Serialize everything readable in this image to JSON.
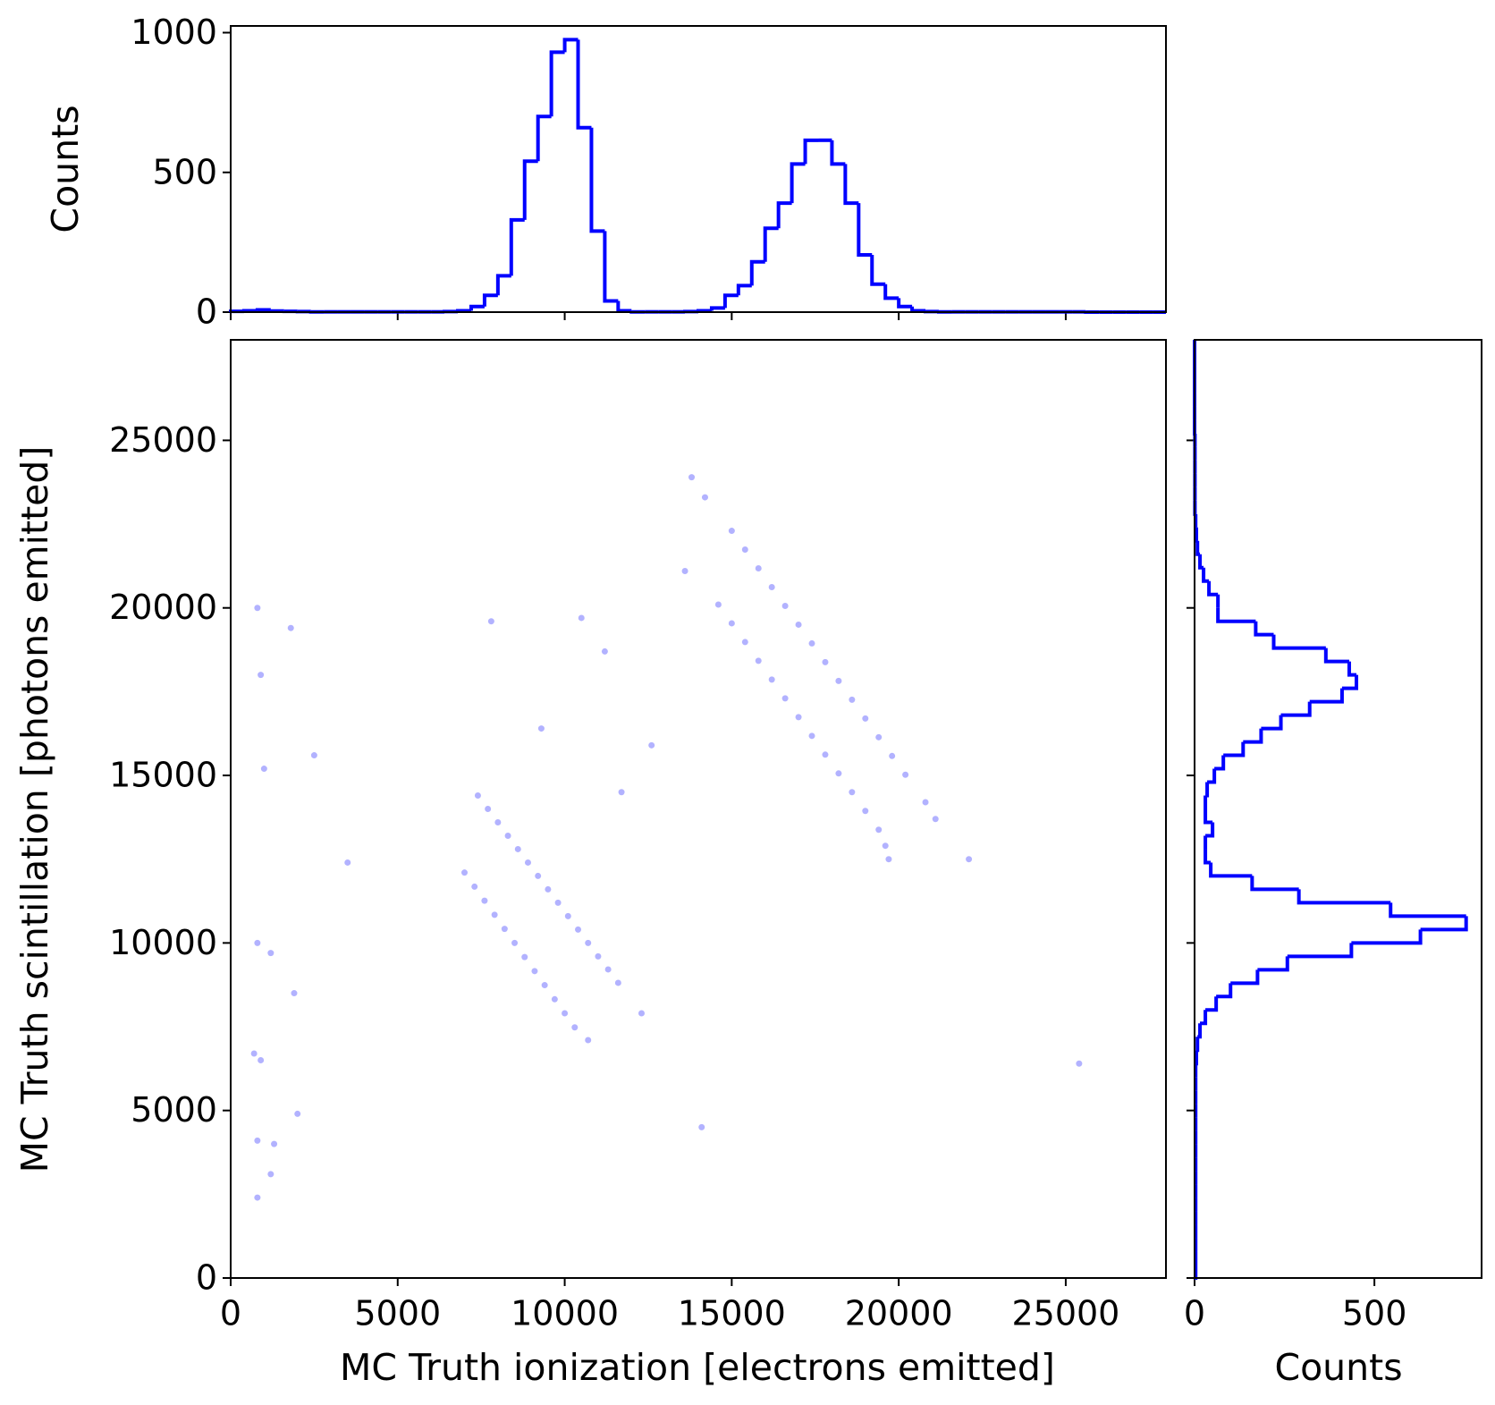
{
  "chart_data": [
    {
      "type": "scatter",
      "x_label": "MC Truth ionization [electrons emitted]",
      "y_label": "MC Truth scintillation [photons emitted]",
      "color": "#0000ff",
      "alpha": 0.3,
      "xlim": [
        0,
        28000
      ],
      "ylim": [
        0,
        28000
      ],
      "xticks": [
        0,
        5000,
        10000,
        15000,
        20000,
        25000
      ],
      "yticks": [
        0,
        5000,
        10000,
        15000,
        20000,
        25000
      ],
      "x": [
        7400,
        7700,
        8000,
        8300,
        8600,
        8900,
        9200,
        9500,
        9800,
        10100,
        10400,
        10700,
        11000,
        11300,
        11600,
        7000,
        7300,
        7600,
        7900,
        8200,
        8500,
        8800,
        9100,
        9400,
        9700,
        10000,
        10300,
        15000,
        15400,
        15800,
        16200,
        16600,
        17000,
        17400,
        17800,
        18200,
        18600,
        19000,
        19400,
        19800,
        20200,
        20800,
        14600,
        15000,
        15400,
        15800,
        16200,
        16600,
        17000,
        17400,
        17800,
        18200,
        18600,
        19000,
        19400,
        19600,
        800,
        900,
        1000,
        800,
        1200,
        1900,
        700,
        900,
        800,
        1300,
        2000,
        800,
        1200,
        2500,
        3500,
        1800,
        7800,
        10500,
        11200,
        9300,
        12600,
        11700,
        12300,
        10700,
        13600,
        14200,
        13800,
        14100,
        22100,
        25400,
        21100,
        19700
      ],
      "y": [
        14400,
        14000,
        13600,
        13200,
        12800,
        12400,
        12000,
        11600,
        11200,
        10800,
        10400,
        10000,
        9600,
        9210,
        8810,
        12100,
        11680,
        11260,
        10840,
        10420,
        10000,
        9580,
        9160,
        8740,
        8320,
        7900,
        7480,
        22300,
        21740,
        21180,
        20620,
        20060,
        19500,
        18940,
        18380,
        17820,
        17260,
        16700,
        16140,
        15580,
        15020,
        14200,
        20100,
        19540,
        18980,
        18420,
        17860,
        17300,
        16740,
        16180,
        15620,
        15060,
        14500,
        13940,
        13380,
        12900,
        20000,
        18000,
        15200,
        10000,
        9700,
        8500,
        6700,
        6500,
        4100,
        4000,
        4900,
        2400,
        3100,
        15600,
        12400,
        19400,
        19600,
        19700,
        18700,
        16400,
        15900,
        14500,
        7900,
        7100,
        21100,
        23300,
        23900,
        4500,
        12500,
        6400,
        13700,
        12500
      ]
    },
    {
      "type": "histogram",
      "orientation": "vertical",
      "y_label": "Counts",
      "color": "#0000ff",
      "bins": [
        0,
        400,
        800,
        1200,
        1600,
        2000,
        2400,
        2800,
        3200,
        3600,
        4000,
        4400,
        4800,
        5200,
        5600,
        6000,
        6400,
        6800,
        7200,
        7600,
        8000,
        8400,
        8800,
        9200,
        9600,
        10000,
        10400,
        10800,
        11200,
        11600,
        12000,
        12400,
        12800,
        13200,
        13600,
        14000,
        14400,
        14800,
        15200,
        15600,
        16000,
        16400,
        16800,
        17200,
        17600,
        18000,
        18400,
        18800,
        19200,
        19600,
        20000,
        20400,
        20800,
        21200,
        21600,
        22000,
        22400,
        22800,
        23200,
        23600,
        24000,
        24400,
        24800,
        25200,
        25600,
        26000,
        26400,
        26800,
        27200,
        27600,
        28000
      ],
      "counts": [
        3,
        5,
        8,
        4,
        3,
        2,
        1,
        1,
        1,
        1,
        1,
        1,
        1,
        1,
        1,
        1,
        2,
        5,
        20,
        60,
        130,
        330,
        540,
        700,
        930,
        975,
        660,
        290,
        40,
        5,
        1,
        1,
        1,
        1,
        2,
        5,
        15,
        60,
        95,
        180,
        300,
        390,
        530,
        615,
        615,
        530,
        390,
        205,
        100,
        50,
        20,
        5,
        2,
        1,
        1,
        1,
        1,
        1,
        1,
        1,
        1,
        1,
        1,
        1,
        0,
        0,
        0,
        0,
        0,
        0
      ],
      "xlim": [
        0,
        28000
      ],
      "ylim": [
        0,
        1024
      ],
      "yticks": [
        0,
        500,
        1000
      ]
    },
    {
      "type": "histogram",
      "orientation": "horizontal",
      "x_label": "Counts",
      "color": "#0000ff",
      "bins": [
        0,
        400,
        800,
        1200,
        1600,
        2000,
        2400,
        2800,
        3200,
        3600,
        4000,
        4400,
        4800,
        5200,
        5600,
        6000,
        6400,
        6800,
        7200,
        7600,
        8000,
        8400,
        8800,
        9200,
        9600,
        10000,
        10400,
        10800,
        11200,
        11600,
        12000,
        12400,
        12800,
        13200,
        13600,
        14000,
        14400,
        14800,
        15200,
        15600,
        16000,
        16400,
        16800,
        17200,
        17600,
        18000,
        18400,
        18800,
        19200,
        19600,
        20000,
        20400,
        20800,
        21200,
        21600,
        22000,
        22400,
        22800,
        23200,
        23600,
        24000,
        24400,
        24800,
        25200,
        25600,
        26000,
        26400,
        26800,
        27200,
        27600,
        28000
      ],
      "counts": [
        3,
        3,
        3,
        3,
        3,
        3,
        3,
        3,
        3,
        3,
        3,
        3,
        3,
        3,
        3,
        3,
        5,
        8,
        15,
        30,
        60,
        100,
        175,
        258,
        436,
        628,
        755,
        545,
        290,
        160,
        45,
        30,
        30,
        50,
        30,
        30,
        35,
        55,
        80,
        135,
        185,
        240,
        320,
        410,
        450,
        430,
        365,
        220,
        170,
        65,
        65,
        40,
        25,
        15,
        8,
        5,
        3,
        1,
        1,
        1,
        1,
        1,
        1,
        0,
        0,
        0,
        0,
        0,
        0,
        0
      ],
      "xlim": [
        0,
        798
      ],
      "ylim": [
        0,
        28000
      ],
      "xticks": [
        0,
        500
      ]
    }
  ]
}
